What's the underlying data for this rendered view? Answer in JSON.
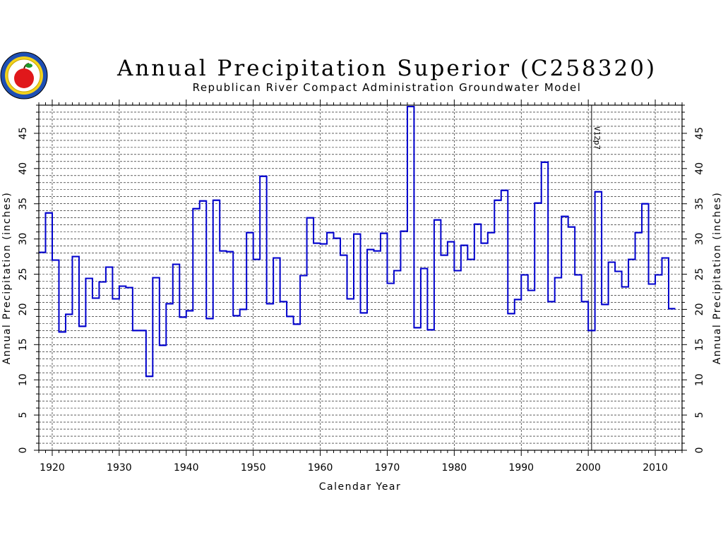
{
  "logo": {
    "icon": "apple-seal-icon"
  },
  "chart_data": {
    "type": "line",
    "step": true,
    "title": "Annual Precipitation Superior (C258320)",
    "subtitle": "Republican River Compact Administration Groundwater Model",
    "xlabel": "Calendar Year",
    "ylabel": "Annual Precipitation (inches)",
    "ylabel_right": "Annual Precipitation (inches)",
    "xlim": [
      1918,
      2014
    ],
    "ylim": [
      0,
      49
    ],
    "x_ticks": [
      1920,
      1930,
      1940,
      1950,
      1960,
      1970,
      1980,
      1990,
      2000,
      2010
    ],
    "y_ticks": [
      0,
      5,
      10,
      15,
      20,
      25,
      30,
      35,
      40,
      45
    ],
    "x_tick_labels": [
      "1920",
      "1930",
      "1940",
      "1950",
      "1960",
      "1970",
      "1980",
      "1990",
      "2000",
      "2010"
    ],
    "y_tick_labels": [
      "0",
      "5",
      "10",
      "15",
      "20",
      "25",
      "30",
      "35",
      "40",
      "45"
    ],
    "grid": true,
    "annotations": [
      {
        "label": "V12p7",
        "x": 2000.5
      }
    ],
    "series": [
      {
        "color": "#0000cc",
        "x": [
          1918,
          1919,
          1920,
          1921,
          1922,
          1923,
          1924,
          1925,
          1926,
          1927,
          1928,
          1929,
          1930,
          1931,
          1932,
          1933,
          1934,
          1935,
          1936,
          1937,
          1938,
          1939,
          1940,
          1941,
          1942,
          1943,
          1944,
          1945,
          1946,
          1947,
          1948,
          1949,
          1950,
          1951,
          1952,
          1953,
          1954,
          1955,
          1956,
          1957,
          1958,
          1959,
          1960,
          1961,
          1962,
          1963,
          1964,
          1965,
          1966,
          1967,
          1968,
          1969,
          1970,
          1971,
          1972,
          1973,
          1974,
          1975,
          1976,
          1977,
          1978,
          1979,
          1980,
          1981,
          1982,
          1983,
          1984,
          1985,
          1986,
          1987,
          1988,
          1989,
          1990,
          1991,
          1992,
          1993,
          1994,
          1995,
          1996,
          1997,
          1998,
          1999,
          2000,
          2001,
          2002,
          2003,
          2004,
          2005,
          2006,
          2007,
          2008,
          2009,
          2010,
          2011,
          2012
        ],
        "y": [
          28.1,
          33.7,
          27.0,
          16.8,
          19.3,
          27.5,
          17.6,
          24.4,
          21.6,
          23.9,
          26.0,
          21.5,
          23.3,
          23.1,
          17.0,
          17.0,
          10.5,
          24.5,
          14.9,
          20.8,
          26.4,
          18.9,
          19.8,
          34.3,
          35.4,
          18.7,
          35.5,
          28.3,
          28.2,
          19.1,
          20.0,
          30.9,
          27.1,
          38.9,
          20.8,
          27.3,
          21.1,
          19.0,
          17.9,
          24.8,
          33.0,
          29.4,
          29.3,
          30.9,
          30.1,
          27.7,
          21.5,
          30.7,
          19.5,
          28.5,
          28.3,
          30.8,
          23.7,
          25.5,
          31.1,
          48.8,
          17.4,
          25.8,
          17.1,
          32.7,
          27.7,
          29.6,
          25.5,
          29.1,
          27.1,
          32.1,
          29.4,
          30.9,
          35.5,
          36.9,
          19.4,
          21.4,
          24.9,
          22.7,
          35.1,
          40.9,
          21.1,
          24.5,
          33.2,
          31.7,
          24.9,
          21.1,
          17.0,
          36.7,
          20.7,
          26.7,
          25.4,
          23.2,
          27.1,
          30.9,
          35.0,
          23.6,
          24.9,
          27.3,
          20.1
        ]
      }
    ]
  }
}
